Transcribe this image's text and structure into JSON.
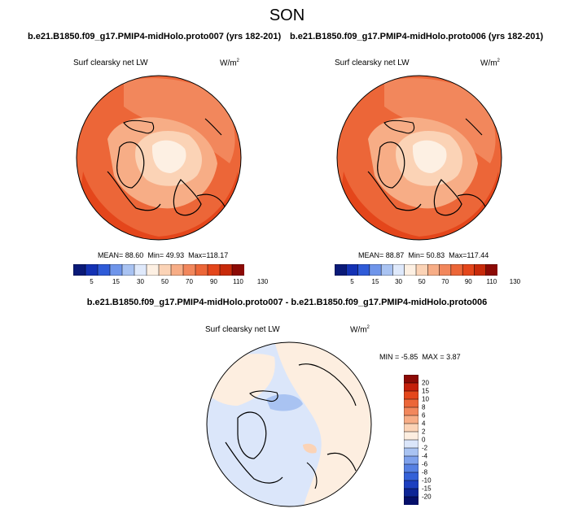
{
  "season": "SON",
  "panels": [
    {
      "title": "b.e21.B1850.f09_g17.PMIP4-midHolo.proto007 (yrs 182-201)",
      "variable": "Surf clearsky net LW",
      "units_base": "W/m",
      "units_exp": "2",
      "stats": {
        "mean_label": "MEAN=",
        "mean": "88.60",
        "min_label": "Min=",
        "min": "49.93",
        "max_label": "Max=",
        "max": "118.17"
      }
    },
    {
      "title": "b.e21.B1850.f09_g17.PMIP4-midHolo.proto006 (yrs 182-201)",
      "variable": "Surf clearsky net LW",
      "units_base": "W/m",
      "units_exp": "2",
      "stats": {
        "mean_label": "MEAN=",
        "mean": "88.87",
        "min_label": "Min=",
        "min": "50.83",
        "max_label": "Max=",
        "max": "117.44"
      }
    }
  ],
  "colorbar": {
    "labels": [
      "5",
      "15",
      "30",
      "50",
      "70",
      "90",
      "110",
      "130"
    ],
    "colors": [
      "#0a1a78",
      "#1432b4",
      "#2f5bd8",
      "#6f95ea",
      "#a9c3f2",
      "#dfe9fb",
      "#fdf0e3",
      "#fbd3b6",
      "#f7ad86",
      "#f2875c",
      "#ec6638",
      "#e4461b",
      "#c82a0a",
      "#8c0a05"
    ]
  },
  "difference": {
    "title": "b.e21.B1850.f09_g17.PMIP4-midHolo.proto007 - b.e21.B1850.f09_g17.PMIP4-midHolo.proto006",
    "variable": "Surf clearsky net LW",
    "units_base": "W/m",
    "units_exp": "2",
    "stats": {
      "min_label": "MIN =",
      "min": "-5.85",
      "max_label": "MAX =",
      "max": "3.87"
    },
    "colorbar_labels": [
      "20",
      "15",
      "10",
      "8",
      "6",
      "4",
      "2",
      "0",
      "-2",
      "-4",
      "-6",
      "-8",
      "-10",
      "-15",
      "-20"
    ],
    "colorbar_colors": [
      "#8c0a05",
      "#c41f0a",
      "#e4461b",
      "#ec6638",
      "#f2875c",
      "#f7ad86",
      "#fbd3b6",
      "#fdeee0",
      "#dbe6fa",
      "#a9c3f2",
      "#7ea1ec",
      "#5680e3",
      "#3461d8",
      "#1c3fc0",
      "#0d2596",
      "#050f6a"
    ]
  }
}
